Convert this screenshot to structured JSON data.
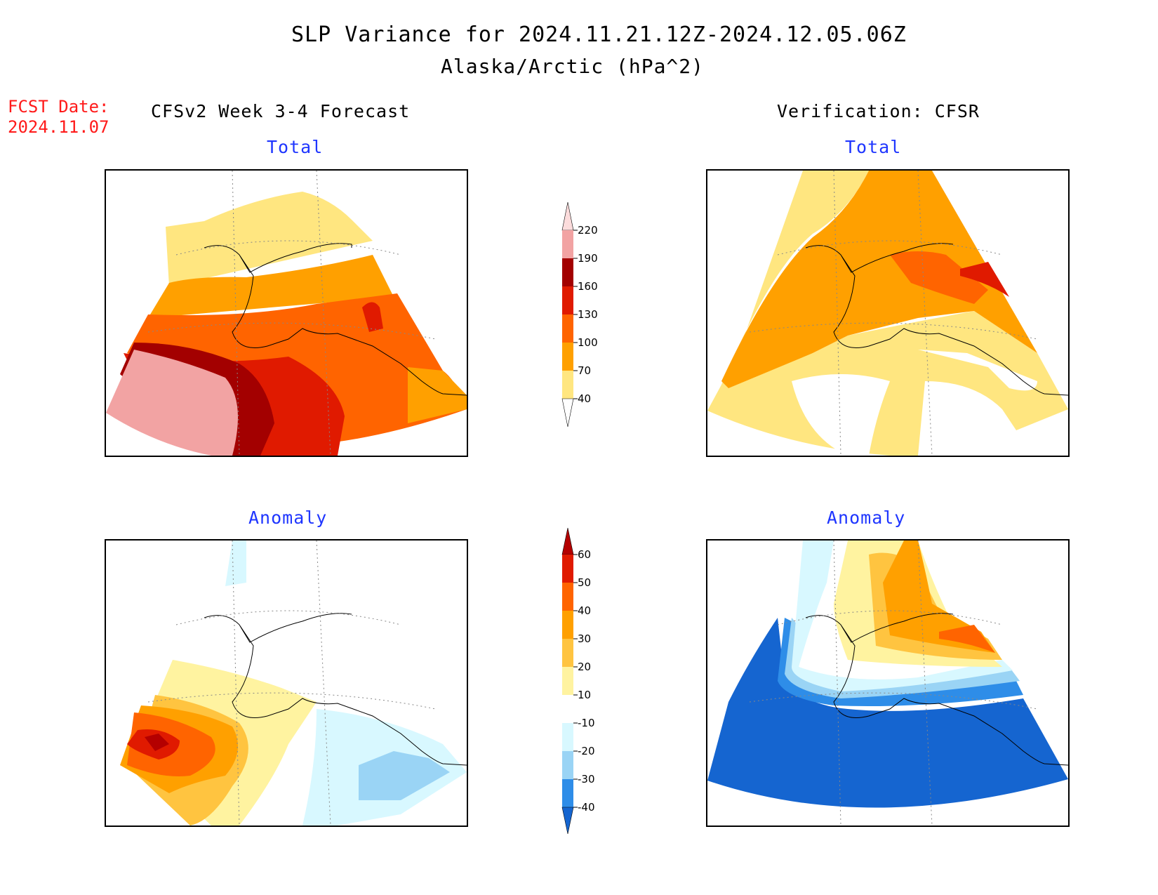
{
  "header": {
    "title": "SLP Variance for 2024.11.21.12Z-2024.12.05.06Z",
    "subtitle": "Alaska/Arctic (hPa^2)",
    "fcst_label": "FCST Date:",
    "fcst_date": "2024.11.07",
    "left_heading": "CFSv2 Week 3-4 Forecast",
    "right_heading": "Verification: CFSR"
  },
  "panels": {
    "forecast_total": {
      "label": "Total"
    },
    "verification_total": {
      "label": "Total"
    },
    "forecast_anomaly": {
      "label": "Anomaly"
    },
    "verification_anomaly": {
      "label": "Anomaly"
    }
  },
  "colorbars": {
    "total": {
      "ticks": [
        "220",
        "190",
        "160",
        "130",
        "100",
        "70",
        "40"
      ],
      "colors": [
        "#fcdcdc",
        "#f2a3a3",
        "#a30000",
        "#e01a00",
        "#ff6400",
        "#ffa000",
        "#ffe680",
        "#ffffff"
      ]
    },
    "anomaly": {
      "ticks": [
        "60",
        "50",
        "40",
        "30",
        "20",
        "10",
        "-10",
        "-20",
        "-30",
        "-40"
      ],
      "colors": [
        "#b40000",
        "#e01a00",
        "#ff6400",
        "#ffa000",
        "#ffc440",
        "#fff3a0",
        "#ffffff",
        "#d8f8ff",
        "#9ad4f5",
        "#2e8de8",
        "#1565d0"
      ]
    }
  }
}
